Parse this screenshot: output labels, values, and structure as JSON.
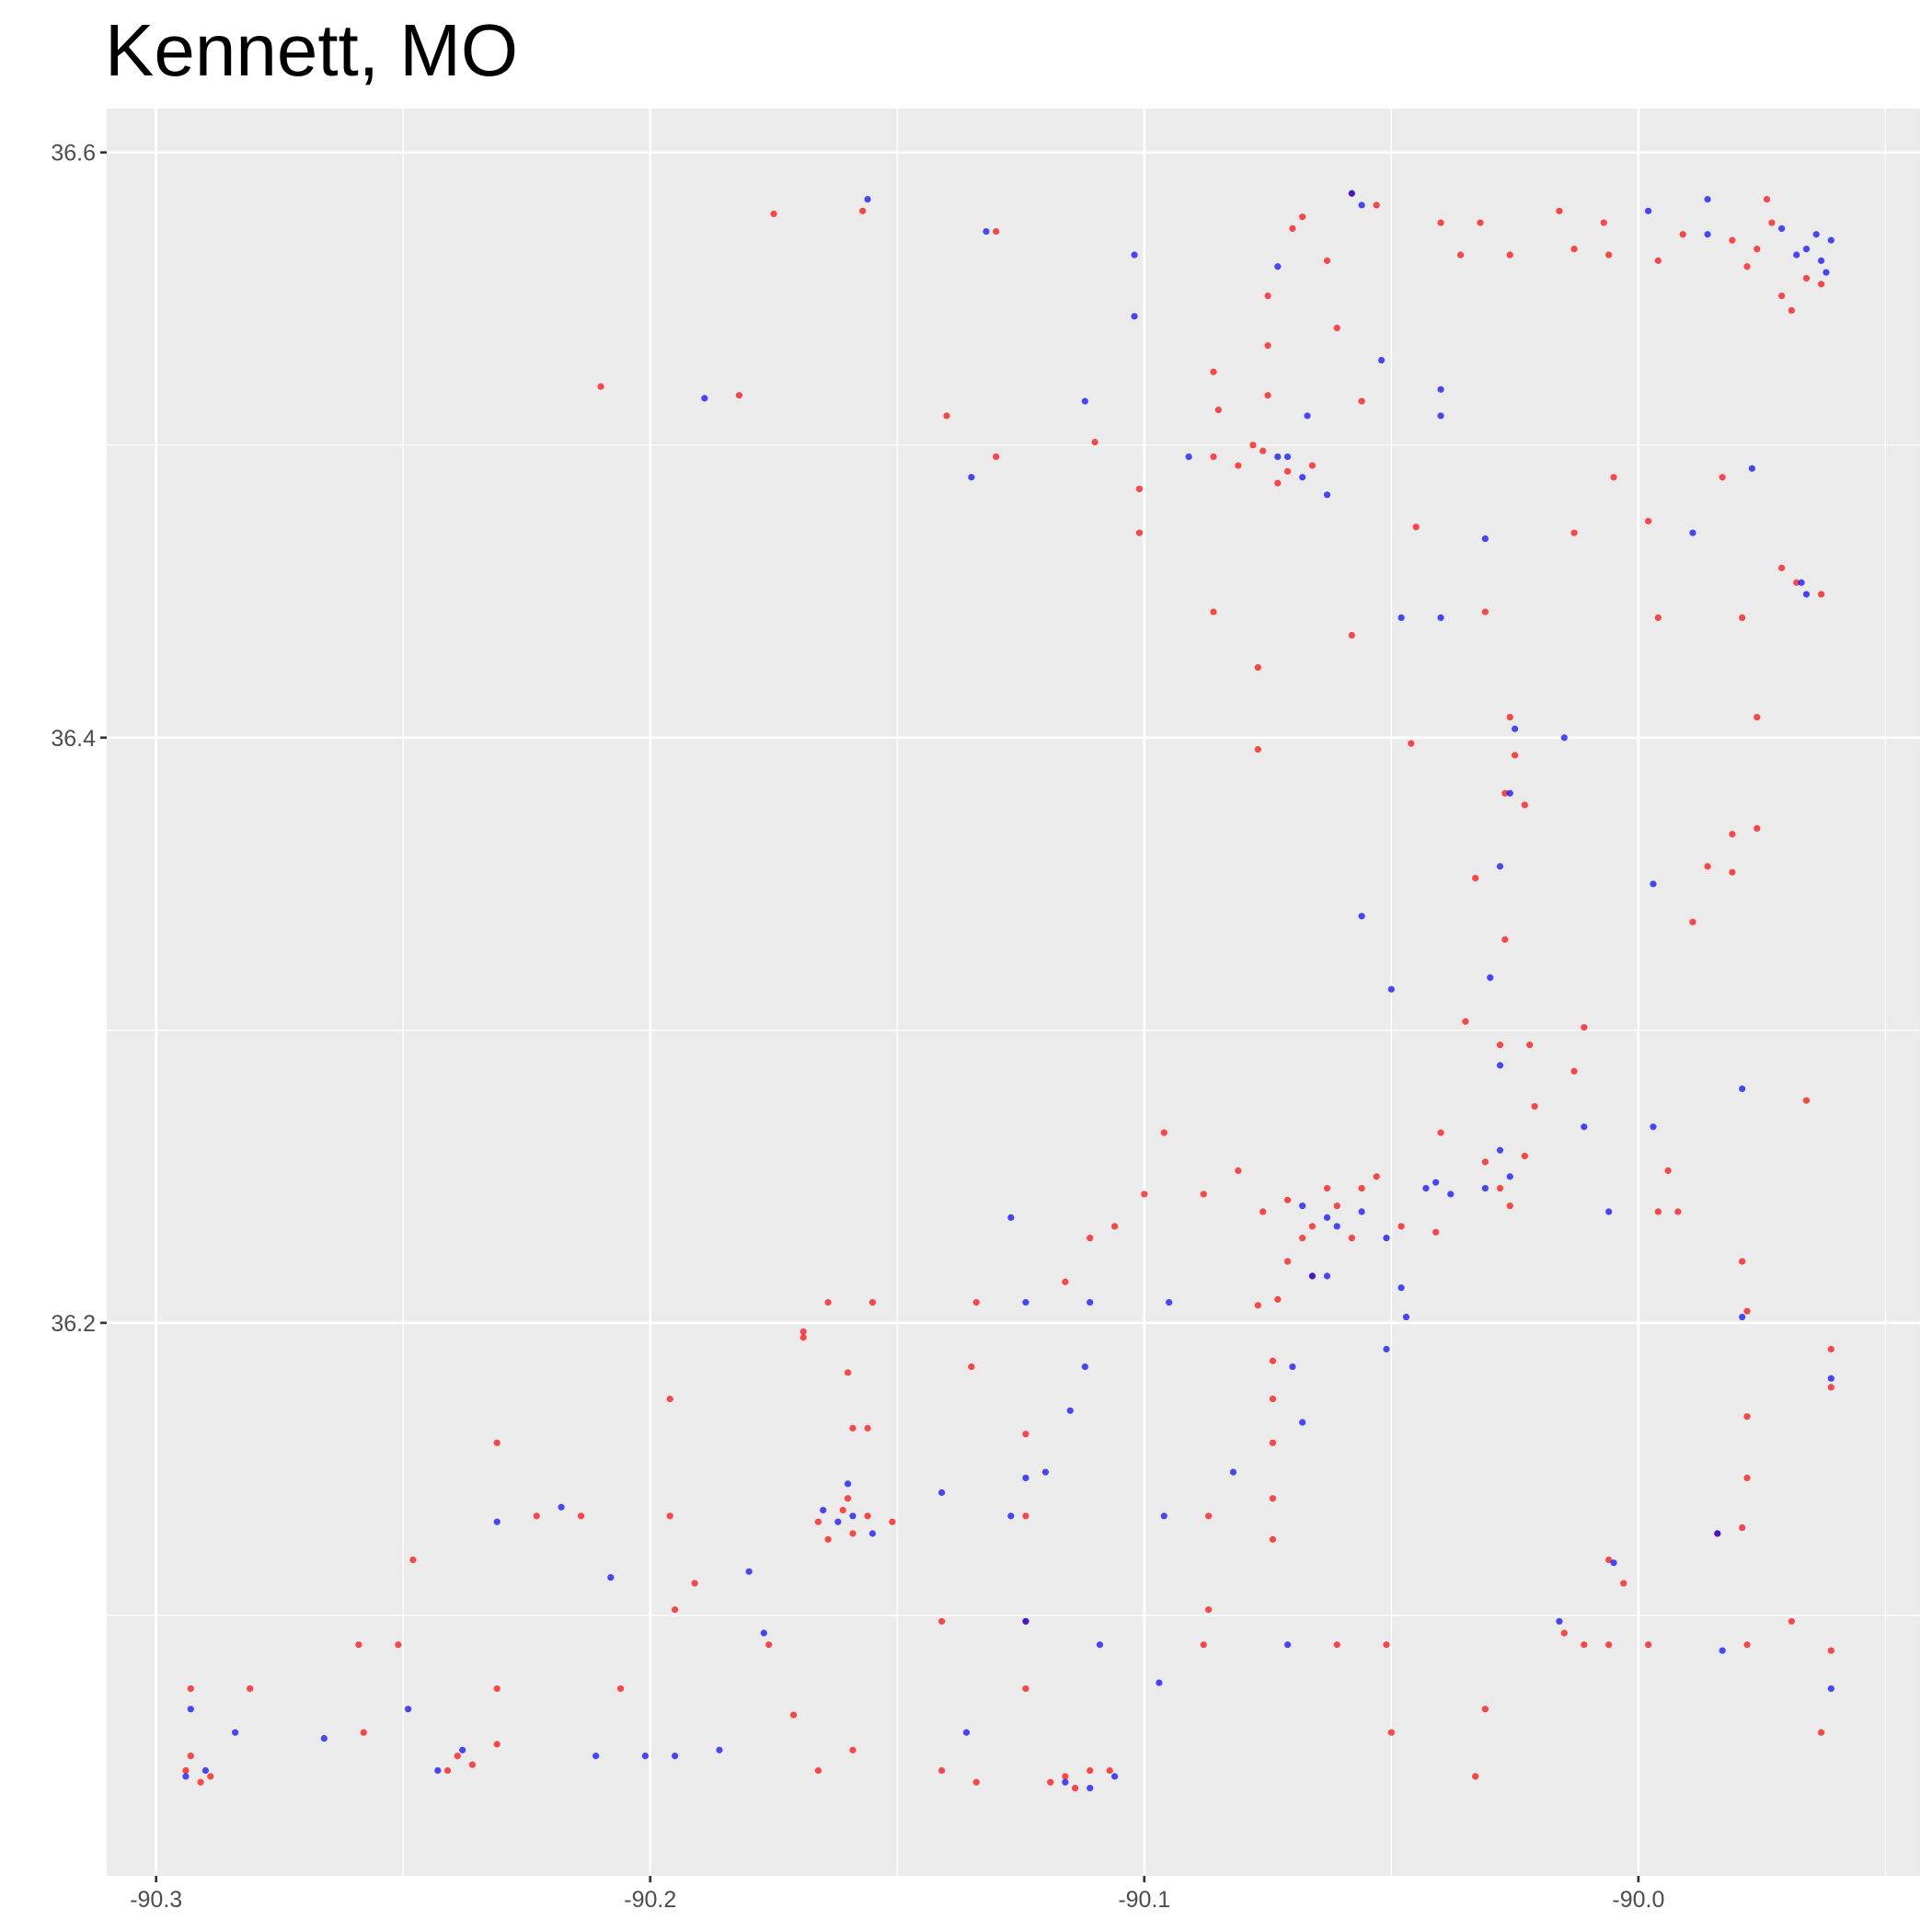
{
  "chart_data": {
    "type": "scatter",
    "title": "Kennett, MO",
    "xlim": [
      -90.31,
      -89.943
    ],
    "ylim": [
      36.011,
      36.615
    ],
    "xticks": [
      -90.3,
      -90.2,
      -90.1,
      {
        "value": -90,
        "label": "-90.0"
      }
    ],
    "yticks": [
      36.2,
      36.4,
      36.6
    ],
    "xminor": [
      -90.25,
      -90.15,
      -90.05,
      -89.95
    ],
    "yminor": [
      36.1,
      36.3,
      36.5
    ],
    "grid": true,
    "series": [
      {
        "color": "#ff0000",
        "x": [
          -89.976,
          -89.973,
          -89.978,
          -89.971,
          -89.974,
          -89.966,
          -89.981,
          -89.969,
          -89.963,
          -89.968,
          -89.971,
          -89.963,
          -90.036,
          -90.026,
          -90.013,
          -90.006,
          -89.996,
          -90.04,
          -90.032,
          -90.016,
          -90.007,
          -89.991,
          -90.086,
          -90.081,
          -90.076,
          -90.071,
          -90.066,
          -90.073,
          -90.078,
          -90.075,
          -90.075,
          -90.075,
          -90.07,
          -90.068,
          -90.058,
          -90.053,
          -90.063,
          -90.061,
          -90.086,
          -90.085,
          -90.056,
          -90.076,
          -90.071,
          -90.066,
          -90.061,
          -90.056,
          -90.053,
          -90.068,
          -90.063,
          -90.058,
          -90.048,
          -90.041,
          -90.071,
          -90.066,
          -90.077,
          -90.073,
          -90.081,
          -90.031,
          -90.028,
          -90.023,
          -90.026,
          -90.021,
          -90.022,
          -90.028,
          -90.013,
          -90.011,
          -90.035,
          -90.04,
          -90.026,
          -90.025,
          -90.023,
          -90.027,
          -90.033,
          -90.027,
          -89.989,
          -89.986,
          -89.981,
          -89.976,
          -89.981,
          -90.166,
          -90.161,
          -90.159,
          -90.164,
          -90.156,
          -90.151,
          -90.16,
          -90.159,
          -90.156,
          -90.16,
          -90.169,
          -90.169,
          -90.239,
          -90.236,
          -90.241,
          -90.231,
          -90.231,
          -90.231,
          -90.294,
          -90.291,
          -90.293,
          -90.289,
          -90.281,
          -90.293,
          -90.119,
          -90.114,
          -90.111,
          -90.116,
          -90.107,
          -90.141,
          -90.134,
          -90.124,
          -90.124,
          -90.124,
          -90.124,
          -90.074,
          -90.074,
          -90.074,
          -90.074,
          -90.074,
          -90.087,
          -90.087,
          -90.088,
          -90.061,
          -90.051,
          -90.05,
          -90.015,
          -90.011,
          -90.006,
          -89.998,
          -89.978,
          -89.961,
          -89.963,
          -89.961,
          -89.961,
          -89.979,
          -89.978,
          -89.978,
          -89.978,
          -89.979,
          -90.196,
          -90.195,
          -90.196,
          -90.191,
          -90.206,
          -90.223,
          -90.214,
          -90.258,
          -90.259,
          -90.251,
          -90.248,
          -90.176,
          -90.171,
          -90.166,
          -90.159,
          -90.141,
          -90.21,
          -90.182,
          -90.175,
          -90.157,
          -90.14,
          -90.13,
          -90.13,
          -90.11,
          -90.101,
          -90.101,
          -90.086,
          -90.077,
          -90.077,
          -90.058,
          -90.046,
          -90.045,
          -90.031,
          -90.013,
          -90.005,
          -89.998,
          -89.979,
          -89.976,
          -89.983,
          -89.996,
          -90.096,
          -90.088,
          -90.1,
          -90.106,
          -90.111,
          -90.116,
          -90.135,
          -90.134,
          -90.155,
          -90.164,
          -90.031,
          -90.033,
          -90.006,
          -90.003,
          -89.996,
          -89.992,
          -89.994,
          -89.984,
          -89.969,
          -89.966
        ],
        "values": [
          36.567,
          36.576,
          36.561,
          36.551,
          36.584,
          36.557,
          36.57,
          36.546,
          36.555,
          36.453,
          36.458,
          36.449,
          36.565,
          36.565,
          36.567,
          36.565,
          36.563,
          36.576,
          36.576,
          36.58,
          36.576,
          36.572,
          36.496,
          36.493,
          36.498,
          36.491,
          36.493,
          36.487,
          36.5,
          36.551,
          36.534,
          36.517,
          36.574,
          36.578,
          36.586,
          36.582,
          36.563,
          36.54,
          36.525,
          36.512,
          36.515,
          36.238,
          36.242,
          36.233,
          36.24,
          36.246,
          36.25,
          36.229,
          36.246,
          36.229,
          36.233,
          36.231,
          36.221,
          36.216,
          36.206,
          36.208,
          36.252,
          36.255,
          36.246,
          36.257,
          36.24,
          36.274,
          36.295,
          36.295,
          36.286,
          36.301,
          36.303,
          36.265,
          36.407,
          36.394,
          36.377,
          36.381,
          36.352,
          36.331,
          36.337,
          36.356,
          36.367,
          36.369,
          36.354,
          36.132,
          36.136,
          36.128,
          36.126,
          36.134,
          36.132,
          36.14,
          36.164,
          36.164,
          36.183,
          36.197,
          36.195,
          36.052,
          36.049,
          36.047,
          36.056,
          36.075,
          36.159,
          36.047,
          36.043,
          36.052,
          36.045,
          36.075,
          36.075,
          36.043,
          36.041,
          36.047,
          36.045,
          36.047,
          36.047,
          36.043,
          36.075,
          36.098,
          36.134,
          36.162,
          36.187,
          36.174,
          36.14,
          36.126,
          36.159,
          36.134,
          36.102,
          36.09,
          36.09,
          36.09,
          36.06,
          36.094,
          36.09,
          36.09,
          36.09,
          36.09,
          36.088,
          36.06,
          36.178,
          36.191,
          36.221,
          36.204,
          36.168,
          36.147,
          36.13,
          36.174,
          36.102,
          36.134,
          36.111,
          36.075,
          36.134,
          36.134,
          36.06,
          36.09,
          36.09,
          36.119,
          36.09,
          36.066,
          36.047,
          36.054,
          36.098,
          36.52,
          36.517,
          36.579,
          36.58,
          36.51,
          36.496,
          36.573,
          36.501,
          36.485,
          36.47,
          36.443,
          36.424,
          36.396,
          36.435,
          36.398,
          36.472,
          36.443,
          36.47,
          36.489,
          36.474,
          36.441,
          36.407,
          36.489,
          36.441,
          36.265,
          36.244,
          36.244,
          36.233,
          36.229,
          36.214,
          36.185,
          36.207,
          36.207,
          36.207,
          36.068,
          36.045,
          36.119,
          36.111,
          36.238,
          36.238,
          36.252,
          36.128,
          36.098,
          36.276
        ]
      },
      {
        "color": "#0000ff",
        "x": [
          -89.966,
          -89.963,
          -89.961,
          -89.968,
          -89.962,
          -89.964,
          -89.971,
          -89.986,
          -89.998,
          -89.986,
          -89.967,
          -89.966,
          -90.071,
          -90.068,
          -90.073,
          -90.091,
          -90.063,
          -90.073,
          -90.052,
          -90.04,
          -90.04,
          -90.031,
          -90.04,
          -90.048,
          -90.067,
          -90.058,
          -90.056,
          -90.043,
          -90.041,
          -90.038,
          -90.063,
          -90.061,
          -90.066,
          -90.063,
          -90.051,
          -90.068,
          -90.056,
          -90.048,
          -90.028,
          -90.026,
          -90.031,
          -90.026,
          -90.025,
          -90.028,
          -90.05,
          -90.056,
          -90.03,
          -90.028,
          -90.015,
          -90.011,
          -89.997,
          -89.997,
          -89.979,
          -89.979,
          -89.984,
          -90.005,
          -90.016,
          -90.162,
          -90.159,
          -90.16,
          -90.155,
          -90.165,
          -90.141,
          -90.18,
          -90.177,
          -90.208,
          -90.218,
          -90.294,
          -90.29,
          -90.284,
          -90.293,
          -90.266,
          -90.249,
          -90.243,
          -90.238,
          -90.231,
          -90.116,
          -90.111,
          -90.106,
          -90.136,
          -90.124,
          -90.124,
          -90.115,
          -90.12,
          -90.112,
          -90.07,
          -90.068,
          -90.071,
          -90.082,
          -90.097,
          -90.051,
          -90.047,
          -90.096,
          -90.109,
          -90.127,
          -90.124,
          -90.111,
          -90.095,
          -90.127,
          -90.189,
          -90.156,
          -90.132,
          -90.135,
          -90.112,
          -90.102,
          -90.102,
          -89.977,
          -89.989,
          -89.983,
          -89.961,
          -89.961,
          -90.006,
          -90.195,
          -90.186,
          -90.211,
          -90.201
        ],
        "values": [
          36.567,
          36.563,
          36.57,
          36.565,
          36.559,
          36.572,
          36.574,
          36.584,
          36.58,
          36.572,
          36.453,
          36.449,
          36.496,
          36.489,
          36.496,
          36.496,
          36.483,
          36.561,
          36.529,
          36.519,
          36.51,
          36.468,
          36.441,
          36.441,
          36.51,
          36.586,
          36.582,
          36.246,
          36.248,
          36.244,
          36.236,
          36.233,
          36.216,
          36.216,
          36.229,
          36.24,
          36.238,
          36.212,
          36.259,
          36.25,
          36.246,
          36.381,
          36.403,
          36.356,
          36.314,
          36.339,
          36.318,
          36.288,
          36.4,
          36.267,
          36.35,
          36.267,
          36.28,
          36.202,
          36.128,
          36.118,
          36.098,
          36.132,
          36.134,
          36.145,
          36.128,
          36.136,
          36.142,
          36.115,
          36.094,
          36.113,
          36.137,
          36.045,
          36.047,
          36.06,
          36.068,
          36.058,
          36.068,
          36.047,
          36.054,
          36.132,
          36.043,
          36.041,
          36.045,
          36.06,
          36.098,
          36.147,
          36.17,
          36.149,
          36.185,
          36.185,
          36.166,
          36.09,
          36.149,
          36.077,
          36.191,
          36.202,
          36.134,
          36.09,
          36.236,
          36.207,
          36.207,
          36.207,
          36.134,
          36.516,
          36.584,
          36.573,
          36.489,
          36.515,
          36.565,
          36.544,
          36.492,
          36.47,
          36.088,
          36.075,
          36.181,
          36.238,
          36.052,
          36.054,
          36.052,
          36.052
        ]
      }
    ]
  }
}
